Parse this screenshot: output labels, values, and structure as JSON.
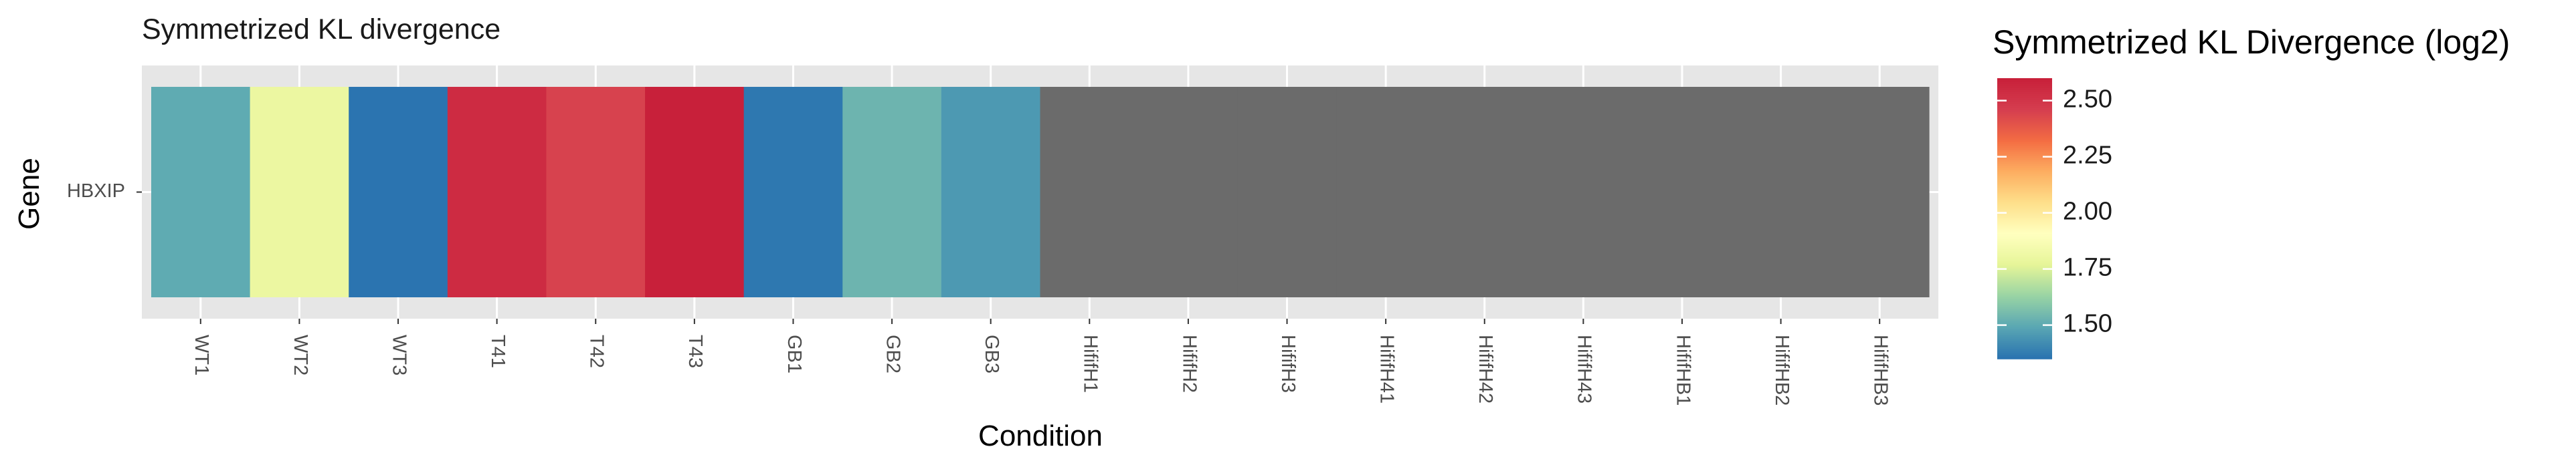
{
  "chart_data": {
    "type": "heatmap",
    "title": "Symmetrized KL divergence",
    "xlabel": "Condition",
    "ylabel": "Gene",
    "rows": [
      "HBXIP"
    ],
    "columns": [
      "WT1",
      "WT2",
      "WT3",
      "T41",
      "T42",
      "T43",
      "GB1",
      "GB2",
      "GB3",
      "HififH1",
      "HififH2",
      "HififH3",
      "HififH41",
      "HififH42",
      "HififH43",
      "HififHB1",
      "HififHB2",
      "HififHB3"
    ],
    "values": [
      [
        1.5,
        1.8,
        1.33,
        2.55,
        2.45,
        2.62,
        1.36,
        1.53,
        1.45,
        null,
        null,
        null,
        null,
        null,
        null,
        null,
        null,
        null
      ]
    ],
    "na_color": "#6b6b6b",
    "grid": true,
    "legend": {
      "title": "Symmetrized KL Divergence (log2)",
      "position": "right",
      "ticks": [
        1.5,
        1.75,
        2.0,
        2.25,
        2.5
      ],
      "tick_labels": [
        "1.50",
        "1.75",
        "2.00",
        "2.25",
        "2.50"
      ],
      "range": [
        1.35,
        2.6
      ],
      "palette": [
        "#2b74b0",
        "#5aa7b3",
        "#99d4a4",
        "#e6f598",
        "#ffffbf",
        "#fee08b",
        "#fdae61",
        "#f46d43",
        "#d53e4f",
        "#c8203a"
      ]
    }
  }
}
